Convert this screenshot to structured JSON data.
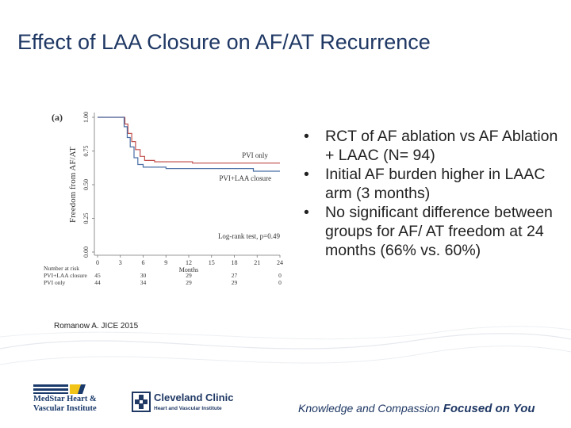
{
  "slide": {
    "title": "Effect of LAA Closure on AF/AT Recurrence",
    "bullets": [
      "RCT of AF ablation vs AF Ablation + LAAC (N= 94)",
      "Initial AF burden higher in LAAC arm (3 months)",
      "No significant difference between groups for AF/ AT freedom at 24 months (66% vs. 60%)"
    ],
    "bullet_glyph": "•",
    "citation": "Romanow A. JICE 2015"
  },
  "footer": {
    "medstar_line1": "MedStar Heart &",
    "medstar_line2": "Vascular Institute",
    "clinic_name": "Cleveland Clinic",
    "clinic_sub": "Heart and Vascular Institute",
    "tagline_light": "Knowledge and Compassion",
    "tagline_bold": "Focused on You",
    "medstar_color": "#1a3a6b",
    "medstar_accent": "#f2c417",
    "clinic_color": "#1f3864"
  },
  "chart_data": {
    "type": "line",
    "panel_label": "(a)",
    "ylabel": "Freedom from AF/AT",
    "xlabel": "Months",
    "x_ticks": [
      0,
      3,
      6,
      9,
      12,
      15,
      18,
      21,
      24
    ],
    "y_ticks": [
      "0.00",
      "0.25",
      "0.50",
      "0.75",
      "1.00"
    ],
    "xlim": [
      0,
      24
    ],
    "ylim": [
      0,
      1
    ],
    "annotation": "Log-rank test, p=0.49",
    "series": [
      {
        "name": "PVI only",
        "color": "#c0504d",
        "x": [
          0,
          3.6,
          3.6,
          4.0,
          4.0,
          4.5,
          4.5,
          5.0,
          5.0,
          5.6,
          5.6,
          6.2,
          6.2,
          7.5,
          7.5,
          12.5,
          12.5,
          24
        ],
        "y": [
          1.0,
          1.0,
          0.95,
          0.95,
          0.88,
          0.88,
          0.82,
          0.82,
          0.76,
          0.76,
          0.71,
          0.71,
          0.68,
          0.68,
          0.67,
          0.67,
          0.66,
          0.66
        ]
      },
      {
        "name": "PVI+LAA closure",
        "color": "#4a6fa5",
        "x": [
          0,
          3.5,
          3.5,
          3.9,
          3.9,
          4.3,
          4.3,
          4.8,
          4.8,
          5.3,
          5.3,
          6.0,
          6.0,
          9.0,
          9.0,
          20.5,
          20.5,
          24
        ],
        "y": [
          1.0,
          1.0,
          0.93,
          0.93,
          0.85,
          0.85,
          0.78,
          0.78,
          0.7,
          0.7,
          0.65,
          0.65,
          0.63,
          0.63,
          0.62,
          0.62,
          0.6,
          0.6
        ]
      }
    ],
    "risk_table": {
      "header": "Number at risk",
      "rows": [
        {
          "label": "PVI+LAA closure",
          "values": [
            "45",
            "30",
            "29",
            "27",
            "0"
          ]
        },
        {
          "label": "PVI only",
          "values": [
            "44",
            "34",
            "29",
            "29",
            "0"
          ]
        }
      ],
      "times": [
        0,
        6,
        12,
        18,
        24
      ]
    }
  }
}
